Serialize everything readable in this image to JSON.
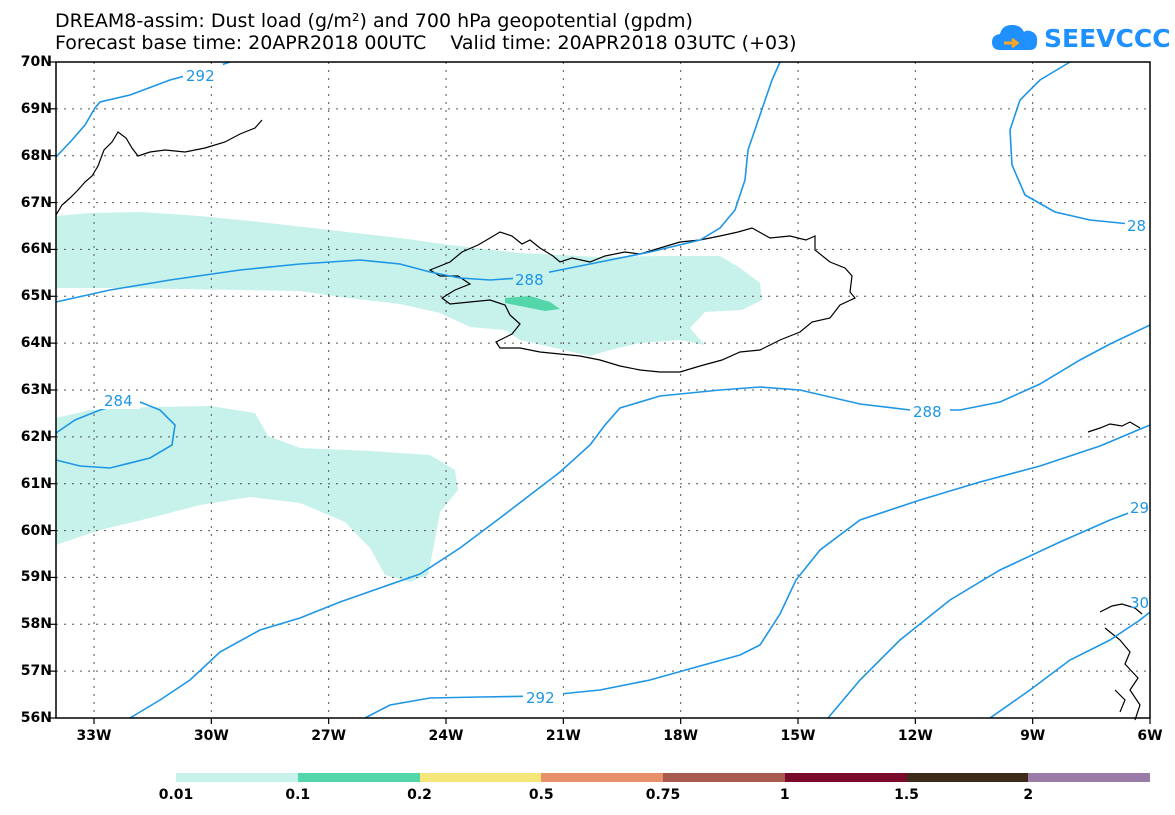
{
  "title": {
    "line1": "DREAM8-assim: Dust load (g/m²) and 700 hPa geopotential (gpdm)",
    "line2": "Forecast base time: 20APR2018 00UTC    Valid time: 20APR2018 03UTC (+03)"
  },
  "logo": {
    "text": "SEEVCCC"
  },
  "axes": {
    "lat_labels": [
      "70N",
      "69N",
      "68N",
      "67N",
      "66N",
      "65N",
      "64N",
      "63N",
      "62N",
      "61N",
      "60N",
      "59N",
      "58N",
      "57N",
      "56N"
    ],
    "lon_labels": [
      "33W",
      "30W",
      "27W",
      "24W",
      "21W",
      "18W",
      "15W",
      "12W",
      "9W",
      "6W"
    ]
  },
  "contours": {
    "color": "#1e96e6",
    "labels": [
      {
        "text": "292"
      },
      {
        "text": "288"
      },
      {
        "text": "284"
      },
      {
        "text": "288"
      },
      {
        "text": "292"
      },
      {
        "text": "28"
      },
      {
        "text": "29"
      },
      {
        "text": "30"
      }
    ]
  },
  "dust_colors": {
    "low": "#c6f2eb",
    "mid": "#52d6aa"
  },
  "colorbar": {
    "colors": [
      "#c6f2eb",
      "#52d6aa",
      "#f5e67a",
      "#e8906a",
      "#a85a4e",
      "#7a0a2a",
      "#3c2a1a",
      "#9a7aa6"
    ],
    "labels": [
      "0.01",
      "0.1",
      "0.2",
      "0.5",
      "0.75",
      "1",
      "1.5",
      "2"
    ]
  }
}
